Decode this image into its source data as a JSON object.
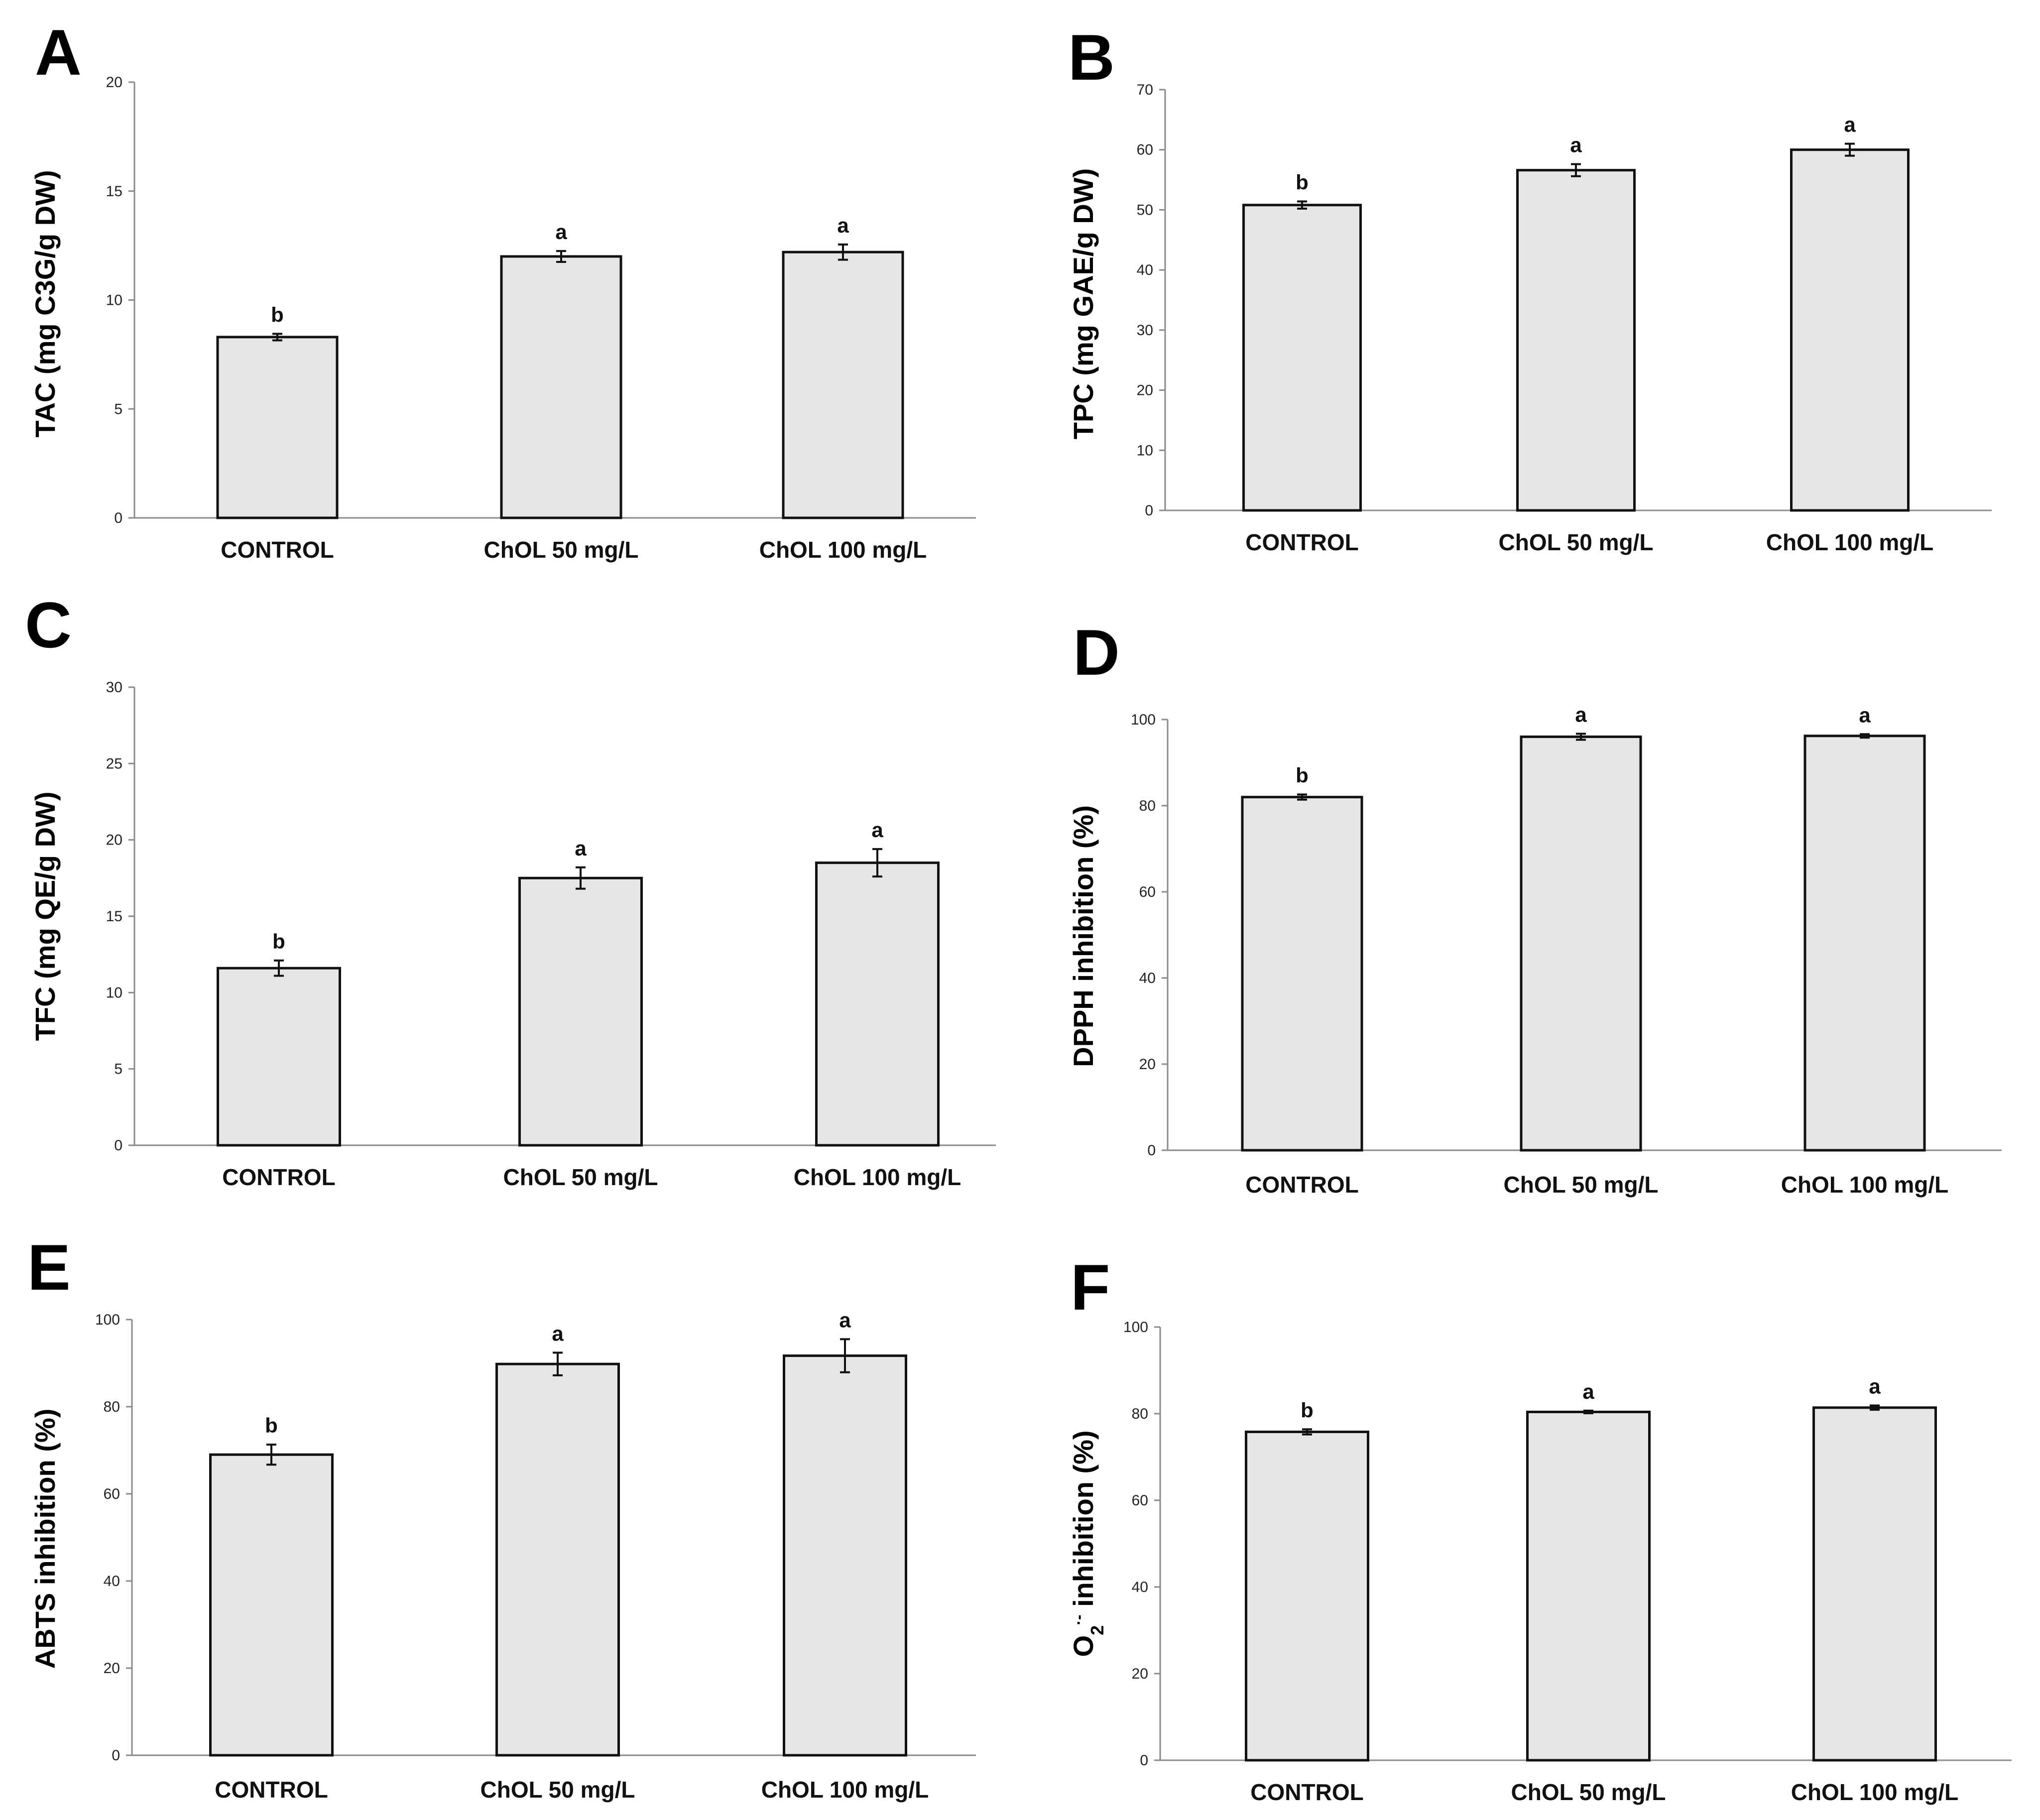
{
  "chart_data": [
    {
      "type": "bar",
      "panel": "A",
      "categories": [
        "CONTROL",
        "ChOL 50 mg/L",
        "ChOL 100 mg/L"
      ],
      "values": [
        8.3,
        12.0,
        12.2
      ],
      "errors": [
        0.15,
        0.25,
        0.35
      ],
      "significance": [
        "b",
        "a",
        "a"
      ],
      "ylabel": "TAC (mg C3G/g DW)",
      "ylim": [
        0,
        20
      ],
      "yticks": [
        0,
        5,
        10,
        15,
        20
      ]
    },
    {
      "type": "bar",
      "panel": "B",
      "categories": [
        "CONTROL",
        "ChOL 50 mg/L",
        "ChOL 100 mg/L"
      ],
      "values": [
        50.8,
        56.6,
        60.0
      ],
      "errors": [
        0.6,
        1.0,
        1.0
      ],
      "significance": [
        "b",
        "a",
        "a"
      ],
      "ylabel": "TPC (mg GAE/g DW)",
      "ylim": [
        0,
        70
      ],
      "yticks": [
        0,
        10,
        20,
        30,
        40,
        50,
        60,
        70
      ]
    },
    {
      "type": "bar",
      "panel": "C",
      "categories": [
        "CONTROL",
        "ChOL 50 mg/L",
        "ChOL 100 mg/L"
      ],
      "values": [
        11.6,
        17.5,
        18.5
      ],
      "errors": [
        0.5,
        0.7,
        0.9
      ],
      "significance": [
        "b",
        "a",
        "a"
      ],
      "ylabel": "TFC (mg QE/g DW)",
      "ylim": [
        0,
        30
      ],
      "yticks": [
        0,
        5,
        10,
        15,
        20,
        25,
        30
      ]
    },
    {
      "type": "bar",
      "panel": "D",
      "categories": [
        "CONTROL",
        "ChOL 50 mg/L",
        "ChOL 100 mg/L"
      ],
      "values": [
        82.0,
        96.0,
        96.2
      ],
      "errors": [
        0.6,
        0.7,
        0.4
      ],
      "significance": [
        "b",
        "a",
        "a"
      ],
      "ylabel": "DPPH inhibition (%)",
      "ylim": [
        0,
        100
      ],
      "yticks": [
        0,
        20,
        40,
        60,
        80,
        100
      ]
    },
    {
      "type": "bar",
      "panel": "E",
      "categories": [
        "CONTROL",
        "ChOL 50 mg/L",
        "ChOL 100 mg/L"
      ],
      "values": [
        69.0,
        89.8,
        91.7
      ],
      "errors": [
        2.3,
        2.6,
        3.8
      ],
      "significance": [
        "b",
        "a",
        "a"
      ],
      "ylabel": "ABTS inhibition (%)",
      "ylim": [
        0,
        100
      ],
      "yticks": [
        0,
        20,
        40,
        60,
        80,
        100
      ]
    },
    {
      "type": "bar",
      "panel": "F",
      "categories": [
        "CONTROL",
        "ChOL 50 mg/L",
        "ChOL 100 mg/L"
      ],
      "values": [
        75.8,
        80.4,
        81.4
      ],
      "errors": [
        0.6,
        0.3,
        0.5
      ],
      "significance": [
        "b",
        "a",
        "a"
      ],
      "ylabel_main": "O",
      "ylabel_sub": "2",
      "ylabel_sup": "·-",
      "ylabel_rest": " inhibition (%)",
      "ylim": [
        0,
        100
      ],
      "yticks": [
        0,
        20,
        40,
        60,
        80,
        100
      ]
    }
  ]
}
